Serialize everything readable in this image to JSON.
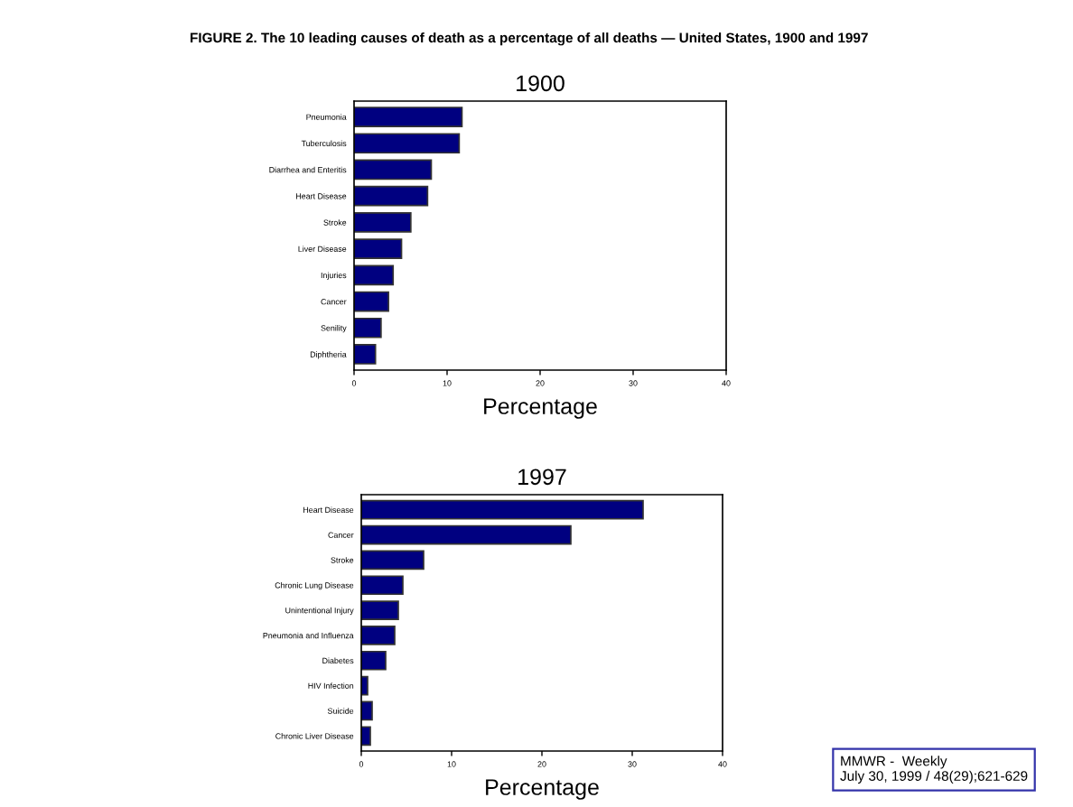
{
  "chart_data": [
    {
      "type": "bar",
      "orientation": "horizontal",
      "title": "1900",
      "xlabel": "Percentage",
      "annotations": [
        "FIGURE 2. The 10 leading causes of death as a percentage of all deaths — United States, 1900 and 1997"
      ],
      "categories": [
        "Pneumonia",
        "Tuberculosis",
        "Diarrhea and Enteritis",
        "Heart Disease",
        "Stroke",
        "Liver Disease",
        "Injuries",
        "Cancer",
        "Senility",
        "Diphtheria"
      ],
      "values": [
        11.6,
        11.3,
        8.3,
        7.9,
        6.1,
        5.1,
        4.2,
        3.7,
        2.9,
        2.3
      ],
      "color": "#000080",
      "xlim": [
        0,
        40
      ],
      "xticks": [
        0,
        10,
        20,
        30,
        40
      ],
      "grid": false
    },
    {
      "type": "bar",
      "orientation": "horizontal",
      "title": "1997",
      "xlabel": "Percentage",
      "annotations": [
        "MMWR -  Weekly\nJuly 30, 1999 / 48(29);621-629"
      ],
      "categories": [
        "Heart Disease",
        "Cancer",
        "Stroke",
        "Chronic Lung Disease",
        "Unintentional Injury",
        "Pneumonia and Influenza",
        "Diabetes",
        "HIV Infection",
        "Suicide",
        "Chronic Liver Disease"
      ],
      "values": [
        31.2,
        23.2,
        6.9,
        4.6,
        4.1,
        3.7,
        2.7,
        0.7,
        1.2,
        1.0
      ],
      "color": "#000080",
      "xlim": [
        0,
        40
      ],
      "xticks": [
        0,
        10,
        20,
        30,
        40
      ],
      "grid": false
    }
  ]
}
